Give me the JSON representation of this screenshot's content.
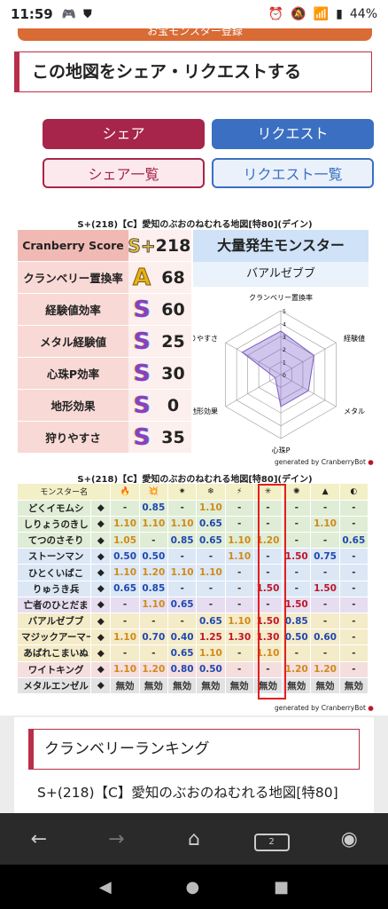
{
  "status": {
    "time": "11:59",
    "battery": "44%"
  },
  "top_button": "お宝モンスター登録",
  "share": {
    "heading": "この地図をシェア・リクエストする",
    "share": "シェア",
    "request": "リクエスト",
    "share_list": "シェア一覧",
    "request_list": "リクエスト一覧"
  },
  "map_title": "S+(218)【C】愛知のぶおのねむれる地図[特80](デイン)",
  "stats": [
    {
      "label": "Cranberry Score",
      "rank": "S+",
      "value": "218"
    },
    {
      "label": "クランベリー置換率",
      "rank": "A",
      "value": "68"
    },
    {
      "label": "経験値効率",
      "rank": "S",
      "value": "60"
    },
    {
      "label": "メタル経験値",
      "rank": "S",
      "value": "25"
    },
    {
      "label": "心珠P効率",
      "rank": "S",
      "value": "30"
    },
    {
      "label": "地形効果",
      "rank": "S",
      "value": "0"
    },
    {
      "label": "狩りやすさ",
      "rank": "S",
      "value": "35"
    }
  ],
  "outbreak": {
    "heading": "大量発生モンスター",
    "name": "バアルゼブブ"
  },
  "radar": {
    "axes": [
      "クランベリー置換率",
      "経験値",
      "メタル",
      "心珠P",
      "地形効果",
      "狩りやすさ"
    ],
    "ticks": [
      "0",
      "1",
      "2",
      "3",
      "4",
      "5"
    ],
    "values": [
      3.4,
      3,
      2.5,
      2.5,
      0.5,
      3.5
    ]
  },
  "generated": "generated by CranberryBot",
  "table_title": "S+(218)【C】愛知のぶおのねむれる地図[特80](デイン)",
  "table": {
    "header": "モンスター名",
    "element_icons": [
      "fire-icon",
      "explosion-icon",
      "wind-icon",
      "ice-icon",
      "lightning-icon",
      "earth-icon",
      "shadow-icon",
      "rock-icon",
      "light-icon"
    ],
    "rows": [
      {
        "name": "どくイモムシ",
        "bg": "#e0edd6",
        "cells": [
          "-",
          "0.85",
          "-",
          "1.10",
          "-",
          "-",
          "-",
          "-",
          "-"
        ]
      },
      {
        "name": "しりょうのきし",
        "bg": "#e0edd6",
        "cells": [
          "1.10",
          "1.10",
          "1.10",
          "0.65",
          "-",
          "-",
          "-",
          "1.10",
          "-"
        ]
      },
      {
        "name": "てつのさそり",
        "bg": "#e0edd6",
        "cells": [
          "1.05",
          "-",
          "0.85",
          "0.65",
          "1.10",
          "1.20",
          "-",
          "-",
          "0.65"
        ]
      },
      {
        "name": "ストーンマン",
        "bg": "#dbe7f5",
        "cells": [
          "0.50",
          "0.50",
          "-",
          "-",
          "1.10",
          "-",
          "1.50",
          "0.75",
          "-"
        ]
      },
      {
        "name": "ひとくいばこ",
        "bg": "#dbe7f5",
        "cells": [
          "1.10",
          "1.20",
          "1.10",
          "1.10",
          "-",
          "-",
          "-",
          "-",
          "-"
        ]
      },
      {
        "name": "りゅうき兵",
        "bg": "#dbe7f5",
        "cells": [
          "0.65",
          "0.85",
          "-",
          "-",
          "-",
          "1.50",
          "-",
          "1.50",
          "-"
        ]
      },
      {
        "name": "亡者のひとだま",
        "bg": "#e6ddf0",
        "cells": [
          "-",
          "1.10",
          "0.65",
          "-",
          "-",
          "-",
          "1.50",
          "-",
          "-"
        ]
      },
      {
        "name": "バアルゼブブ",
        "bg": "#f4ebc8",
        "cells": [
          "-",
          "-",
          "-",
          "0.65",
          "1.10",
          "1.50",
          "0.85",
          "-",
          "-"
        ]
      },
      {
        "name": "マジックアーマー",
        "bg": "#f4ebc8",
        "cells": [
          "1.10",
          "0.70",
          "0.40",
          "1.25",
          "1.30",
          "1.30",
          "0.50",
          "0.60",
          "-"
        ]
      },
      {
        "name": "あばれこまいぬ",
        "bg": "#f4ebc8",
        "cells": [
          "-",
          "-",
          "0.65",
          "1.10",
          "-",
          "1.10",
          "-",
          "-",
          "-"
        ]
      },
      {
        "name": "ワイトキング",
        "bg": "#f5dede",
        "cells": [
          "1.10",
          "1.20",
          "0.80",
          "0.50",
          "-",
          "-",
          "1.20",
          "1.20",
          "-"
        ]
      },
      {
        "name": "メタルエンゼル",
        "bg": "#e2e2e2",
        "cells": [
          "無効",
          "無効",
          "無効",
          "無効",
          "無効",
          "無効",
          "無効",
          "無効",
          "無効"
        ]
      }
    ]
  },
  "ranking": {
    "heading": "クランベリーランキング",
    "text": "S+(218)【C】愛知のぶおのねむれる地図[特80]"
  },
  "nav": {
    "tabs": "2"
  },
  "colors": {
    "low": "#1f48b0",
    "high": "#c0152a",
    "mid": "#d08a1a",
    "neutral": "#333333"
  }
}
